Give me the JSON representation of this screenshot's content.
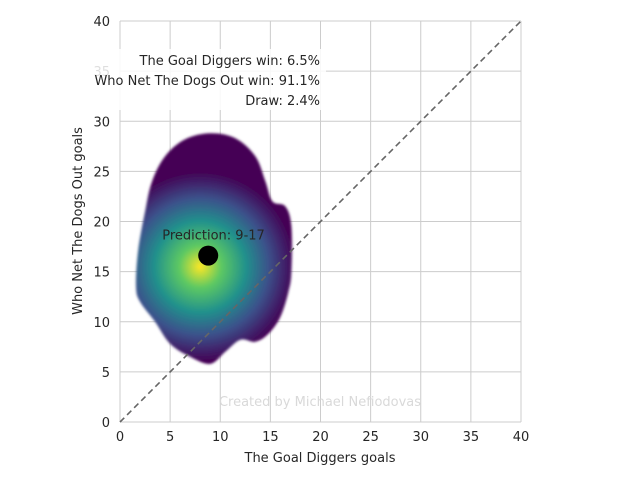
{
  "chart_data": {
    "type": "density",
    "xlabel": "The Goal Diggers goals",
    "ylabel": "Who Net The Dogs Out goals",
    "xlim": [
      0,
      40
    ],
    "ylim": [
      0,
      40
    ],
    "xticks": [
      0,
      5,
      10,
      15,
      20,
      25,
      30,
      35,
      40
    ],
    "yticks": [
      0,
      5,
      10,
      15,
      20,
      25,
      30,
      35,
      40
    ],
    "grid": true,
    "reference_line": {
      "from": [
        0,
        0
      ],
      "to": [
        40,
        40
      ],
      "style": "dashed",
      "color": "#666666"
    },
    "density_outline": [
      [
        9.0,
        28.8
      ],
      [
        11.5,
        28.3
      ],
      [
        13.5,
        26.5
      ],
      [
        14.5,
        24.0
      ],
      [
        15.2,
        22.0
      ],
      [
        16.5,
        21.5
      ],
      [
        17.1,
        19.5
      ],
      [
        17.1,
        15.0
      ],
      [
        16.8,
        13.0
      ],
      [
        16.0,
        10.5
      ],
      [
        14.8,
        8.8
      ],
      [
        13.5,
        8.0
      ],
      [
        12.0,
        8.2
      ],
      [
        10.5,
        7.0
      ],
      [
        9.0,
        5.8
      ],
      [
        7.0,
        6.5
      ],
      [
        5.0,
        7.8
      ],
      [
        3.5,
        10.0
      ],
      [
        2.0,
        12.0
      ],
      [
        1.6,
        13.5
      ],
      [
        1.8,
        17.0
      ],
      [
        2.5,
        21.0
      ],
      [
        3.2,
        24.0
      ],
      [
        4.5,
        26.5
      ],
      [
        6.5,
        28.2
      ]
    ],
    "density_peak": [
      8.0,
      15.5
    ],
    "colormap": [
      "#440154",
      "#3b528b",
      "#21918c",
      "#5ec962",
      "#fde725"
    ],
    "prediction_point": {
      "x": 8.8,
      "y": 16.6,
      "color": "#000000"
    },
    "prediction_label": "Prediction: 9-17",
    "outcomes": [
      "The Goal Diggers win: 6.5%",
      "Who Net The Dogs Out win: 91.1%",
      "Draw: 2.4%"
    ],
    "watermark": "Created by Michael Nefiodovas"
  }
}
